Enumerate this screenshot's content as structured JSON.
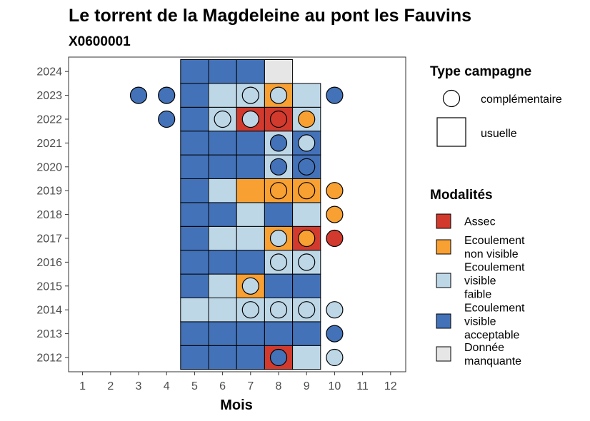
{
  "chart_data": {
    "type": "heatmap",
    "title": "Le torrent de la Magdeleine au pont les Fauvins",
    "subtitle": "X0600001",
    "xlabel": "Mois",
    "ylabel": "",
    "x_ticks": [
      "1",
      "2",
      "3",
      "4",
      "5",
      "6",
      "7",
      "8",
      "9",
      "10",
      "11",
      "12"
    ],
    "y_ticks": [
      "2012",
      "2013",
      "2014",
      "2015",
      "2016",
      "2017",
      "2018",
      "2019",
      "2020",
      "2021",
      "2022",
      "2023",
      "2024"
    ],
    "colors": {
      "A": "#d13a2d",
      "N": "#f9a033",
      "F": "#bdd7e7",
      "V": "#4372b8",
      "M": "#e6e6e6"
    },
    "usual": [
      {
        "year": 2012,
        "months": [
          "V",
          "V",
          "V",
          "A",
          "F"
        ]
      },
      {
        "year": 2013,
        "months": [
          "V",
          "V",
          "V",
          "V",
          "V"
        ]
      },
      {
        "year": 2014,
        "months": [
          "F",
          "F",
          "F",
          "F",
          "F"
        ]
      },
      {
        "year": 2015,
        "months": [
          "V",
          "F",
          "N",
          "V",
          "V"
        ]
      },
      {
        "year": 2016,
        "months": [
          "V",
          "V",
          "V",
          "F",
          "F"
        ]
      },
      {
        "year": 2017,
        "months": [
          "V",
          "F",
          "F",
          "N",
          "A"
        ]
      },
      {
        "year": 2018,
        "months": [
          "V",
          "V",
          "F",
          "V",
          "F"
        ]
      },
      {
        "year": 2019,
        "months": [
          "V",
          "F",
          "N",
          "N",
          "N"
        ]
      },
      {
        "year": 2020,
        "months": [
          "V",
          "V",
          "V",
          "F",
          "V"
        ]
      },
      {
        "year": 2021,
        "months": [
          "V",
          "V",
          "V",
          "F",
          "V"
        ]
      },
      {
        "year": 2022,
        "months": [
          "V",
          "F",
          "A",
          "A",
          "F"
        ]
      },
      {
        "year": 2023,
        "months": [
          "V",
          "F",
          "F",
          "N",
          "F"
        ]
      },
      {
        "year": 2024,
        "months": [
          "V",
          "V",
          "V",
          "M"
        ]
      }
    ],
    "usual_start_month": 5,
    "complementary": [
      {
        "year": 2012,
        "month": 8,
        "value": "V"
      },
      {
        "year": 2012,
        "month": 10,
        "value": "F"
      },
      {
        "year": 2013,
        "month": 10,
        "value": "V"
      },
      {
        "year": 2014,
        "month": 7,
        "value": "F"
      },
      {
        "year": 2014,
        "month": 8,
        "value": "F"
      },
      {
        "year": 2014,
        "month": 9,
        "value": "F"
      },
      {
        "year": 2014,
        "month": 10,
        "value": "F"
      },
      {
        "year": 2015,
        "month": 7,
        "value": "F"
      },
      {
        "year": 2016,
        "month": 8,
        "value": "F"
      },
      {
        "year": 2016,
        "month": 9,
        "value": "F"
      },
      {
        "year": 2017,
        "month": 8,
        "value": "F"
      },
      {
        "year": 2017,
        "month": 9,
        "value": "N"
      },
      {
        "year": 2017,
        "month": 10,
        "value": "A"
      },
      {
        "year": 2018,
        "month": 10,
        "value": "N"
      },
      {
        "year": 2019,
        "month": 8,
        "value": "N"
      },
      {
        "year": 2019,
        "month": 9,
        "value": "N"
      },
      {
        "year": 2019,
        "month": 10,
        "value": "N"
      },
      {
        "year": 2020,
        "month": 8,
        "value": "V"
      },
      {
        "year": 2020,
        "month": 9,
        "value": "V"
      },
      {
        "year": 2021,
        "month": 8,
        "value": "V"
      },
      {
        "year": 2021,
        "month": 9,
        "value": "F"
      },
      {
        "year": 2022,
        "month": 4,
        "value": "V"
      },
      {
        "year": 2022,
        "month": 6,
        "value": "F"
      },
      {
        "year": 2022,
        "month": 7,
        "value": "F"
      },
      {
        "year": 2022,
        "month": 8,
        "value": "A"
      },
      {
        "year": 2022,
        "month": 9,
        "value": "N"
      },
      {
        "year": 2023,
        "month": 3,
        "value": "V"
      },
      {
        "year": 2023,
        "month": 4,
        "value": "V"
      },
      {
        "year": 2023,
        "month": 7,
        "value": "F"
      },
      {
        "year": 2023,
        "month": 8,
        "value": "F"
      },
      {
        "year": 2023,
        "month": 10,
        "value": "V"
      }
    ],
    "legend_type": {
      "title": "Type campagne",
      "items": [
        {
          "shape": "circle",
          "label": "complémentaire"
        },
        {
          "shape": "square",
          "label": "usuelle"
        }
      ]
    },
    "legend_modalities": {
      "title": "Modalités",
      "items": [
        {
          "key": "A",
          "lines": [
            "Assec"
          ]
        },
        {
          "key": "N",
          "lines": [
            "Ecoulement",
            "non visible"
          ]
        },
        {
          "key": "F",
          "lines": [
            "Ecoulement",
            "visible",
            "faible"
          ]
        },
        {
          "key": "V",
          "lines": [
            "Ecoulement",
            "visible",
            "acceptable"
          ]
        },
        {
          "key": "M",
          "lines": [
            "Donnée",
            "manquante"
          ]
        }
      ]
    }
  }
}
